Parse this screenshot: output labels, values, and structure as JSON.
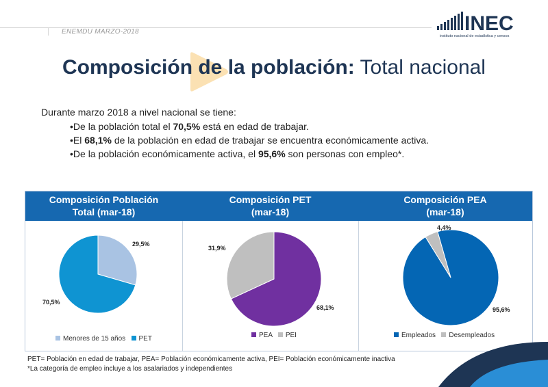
{
  "header": {
    "subtitle": "ENEMDU MARZO-2018",
    "logo_text": "INEC",
    "logo_tagline": "instituto nacional de estadística y censos"
  },
  "title": {
    "bold": "Composición de la población:",
    "light": "Total nacional"
  },
  "intro": "Durante marzo 2018 a nivel nacional se tiene:",
  "bullets": [
    {
      "pre": "•De la población total el ",
      "bold": "70,5%",
      "post": " está en edad de trabajar."
    },
    {
      "pre": "•El ",
      "bold": "68,1%",
      "post": " de la población en edad de trabajar se encuentra económicamente activa."
    },
    {
      "pre": "•De la población económicamente activa, el ",
      "bold": "95,6%",
      "post": " son personas con empleo*."
    }
  ],
  "colors": {
    "title": "#1e3554",
    "header_blue": "#1668b0",
    "pie_light_blue": "#a9c3e3",
    "pie_blue": "#0f94d2",
    "pie_purple": "#7030a0",
    "pie_gray": "#bfbfbf",
    "pie_dark_blue": "#0466b4",
    "accent_orange": "#f6a623"
  },
  "chart_data": [
    {
      "type": "pie",
      "title_line1": "Composición Población",
      "title_line2": "Total (mar-18)",
      "categories": [
        "Menores de 15 años",
        "PET"
      ],
      "values": [
        29.5,
        70.5
      ],
      "labels": [
        "29,5%",
        "70,5%"
      ],
      "colors": [
        "#a9c3e3",
        "#0f94d2"
      ]
    },
    {
      "type": "pie",
      "title_line1": "Composición PET",
      "title_line2": "(mar-18)",
      "categories": [
        "PEA",
        "PEI"
      ],
      "values": [
        68.1,
        31.9
      ],
      "labels": [
        "68,1%",
        "31,9%"
      ],
      "colors": [
        "#7030a0",
        "#bfbfbf"
      ]
    },
    {
      "type": "pie",
      "title_line1": "Composición PEA",
      "title_line2": "(mar-18)",
      "categories": [
        "Empleados",
        "Desempleados"
      ],
      "values": [
        95.6,
        4.4
      ],
      "labels": [
        "95,6%",
        "4,4%"
      ],
      "colors": [
        "#0466b4",
        "#bfbfbf"
      ]
    }
  ],
  "footnotes": [
    "PET= Población en edad de trabajar, PEA= Población económicamente activa, PEI= Población económicamente inactiva",
    "*La categoría de empleo incluye a los asalariados y independientes"
  ]
}
